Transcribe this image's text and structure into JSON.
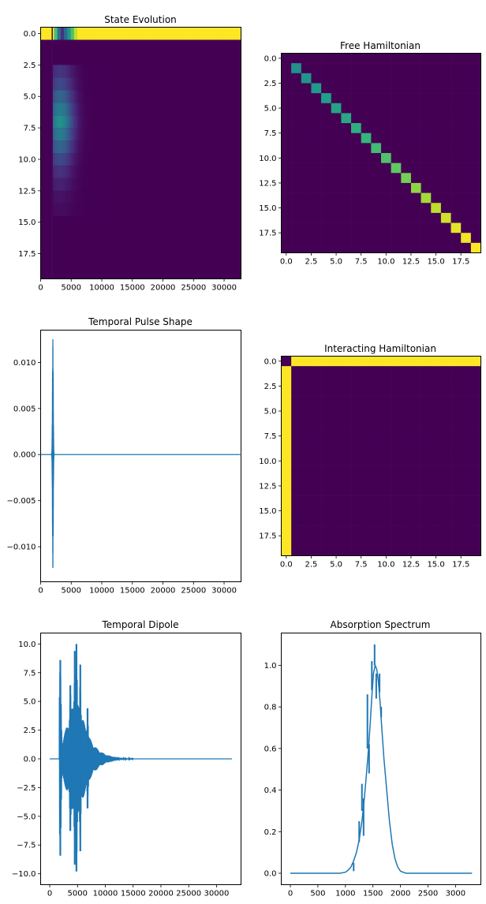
{
  "chart_data": [
    {
      "id": "state_evolution",
      "type": "heatmap",
      "title": "State Evolution",
      "colormap": "viridis",
      "xlim": [
        0,
        32768
      ],
      "ylim": [
        19.5,
        -0.5
      ],
      "x_ticks": [
        0,
        5000,
        10000,
        15000,
        20000,
        25000,
        30000
      ],
      "x_tick_labels": [
        "0",
        "5000",
        "10000",
        "15000",
        "20000",
        "25000",
        "30000"
      ],
      "y_ticks": [
        0,
        2.5,
        5,
        7.5,
        10,
        12.5,
        15,
        17.5
      ],
      "y_tick_labels": [
        "0.0",
        "2.5",
        "5.0",
        "7.5",
        "10.0",
        "12.5",
        "15.0",
        "17.5"
      ],
      "row0_population": {
        "full_before_x": 1800,
        "dip_start_x": 2000,
        "recovered_x": 6000,
        "min_value": 0.1
      },
      "excited_rows": [
        {
          "row": 3,
          "peak": 0.15
        },
        {
          "row": 4,
          "peak": 0.22
        },
        {
          "row": 5,
          "peak": 0.32
        },
        {
          "row": 6,
          "peak": 0.42
        },
        {
          "row": 7,
          "peak": 0.5
        },
        {
          "row": 8,
          "peak": 0.42
        },
        {
          "row": 9,
          "peak": 0.32
        },
        {
          "row": 10,
          "peak": 0.22
        },
        {
          "row": 11,
          "peak": 0.14
        },
        {
          "row": 12,
          "peak": 0.09
        },
        {
          "row": 13,
          "peak": 0.05
        },
        {
          "row": 14,
          "peak": 0.03
        }
      ],
      "excited_window_x": [
        2000,
        12000
      ]
    },
    {
      "id": "free_hamiltonian",
      "type": "heatmap",
      "title": "Free Hamiltonian",
      "colormap": "viridis",
      "size": 20,
      "diagonal_values": [
        0,
        0.5,
        0.52,
        0.54,
        0.56,
        0.58,
        0.6,
        0.63,
        0.66,
        0.69,
        0.72,
        0.75,
        0.79,
        0.83,
        0.86,
        0.9,
        0.93,
        0.96,
        0.98,
        1.0
      ],
      "x_ticks": [
        0,
        2.5,
        5,
        7.5,
        10,
        12.5,
        15,
        17.5
      ],
      "x_tick_labels": [
        "0.0",
        "2.5",
        "5.0",
        "7.5",
        "10.0",
        "12.5",
        "15.0",
        "17.5"
      ],
      "y_ticks": [
        0,
        2.5,
        5,
        7.5,
        10,
        12.5,
        15,
        17.5
      ],
      "y_tick_labels": [
        "0.0",
        "2.5",
        "5.0",
        "7.5",
        "10.0",
        "12.5",
        "15.0",
        "17.5"
      ]
    },
    {
      "id": "temporal_pulse_shape",
      "type": "line",
      "title": "Temporal Pulse Shape",
      "color": "#1f77b4",
      "xlim": [
        0,
        32768
      ],
      "ylim": [
        -0.0138,
        0.0135
      ],
      "pulse_center_x": 2000,
      "pulse_peak": 0.0125,
      "pulse_width_x": 90,
      "x_end": 32768,
      "x_ticks": [
        0,
        5000,
        10000,
        15000,
        20000,
        25000,
        30000
      ],
      "x_tick_labels": [
        "0",
        "5000",
        "10000",
        "15000",
        "20000",
        "25000",
        "30000"
      ],
      "y_ticks": [
        0.01,
        0.005,
        0,
        -0.005,
        -0.01
      ],
      "y_tick_labels": [
        "0.010",
        "0.005",
        "0.000",
        "−0.005",
        "−0.010"
      ]
    },
    {
      "id": "interacting_hamiltonian",
      "type": "heatmap",
      "title": "Interacting Hamiltonian",
      "colormap": "viridis",
      "size": 20,
      "nonzero": "first row and first column except element [0,0]",
      "x_ticks": [
        0,
        2.5,
        5,
        7.5,
        10,
        12.5,
        15,
        17.5
      ],
      "x_tick_labels": [
        "0.0",
        "2.5",
        "5.0",
        "7.5",
        "10.0",
        "12.5",
        "15.0",
        "17.5"
      ],
      "y_ticks": [
        0,
        2.5,
        5,
        7.5,
        10,
        12.5,
        15,
        17.5
      ],
      "y_tick_labels": [
        "0.0",
        "2.5",
        "5.0",
        "7.5",
        "10.0",
        "12.5",
        "15.0",
        "17.5"
      ]
    },
    {
      "id": "temporal_dipole",
      "type": "line",
      "title": "Temporal Dipole",
      "color": "#1f77b4",
      "xlim": [
        -1638,
        34406
      ],
      "ylim": [
        -10.95,
        10.95
      ],
      "x_start": 0,
      "x_end": 32768,
      "signal_start_x": 1700,
      "spikes": [
        {
          "x": 1900,
          "amp": 8.6
        },
        {
          "x": 3700,
          "amp": 6.4
        },
        {
          "x": 4500,
          "amp": 9.4
        },
        {
          "x": 4800,
          "amp": 10.0
        },
        {
          "x": 5500,
          "amp": 8.2
        },
        {
          "x": 6800,
          "amp": 4.4
        }
      ],
      "x_ticks": [
        0,
        5000,
        10000,
        15000,
        20000,
        25000,
        30000
      ],
      "x_tick_labels": [
        "0",
        "5000",
        "10000",
        "15000",
        "20000",
        "25000",
        "30000"
      ],
      "y_ticks": [
        10,
        7.5,
        5,
        2.5,
        0,
        -2.5,
        -5,
        -7.5,
        -10
      ],
      "y_tick_labels": [
        "10.0",
        "7.5",
        "5.0",
        "2.5",
        "0.0",
        "−2.5",
        "−5.0",
        "−7.5",
        "−10.0"
      ]
    },
    {
      "id": "absorption_spectrum",
      "type": "line",
      "title": "Absorption Spectrum",
      "color": "#1f77b4",
      "xlim": [
        -165,
        3460
      ],
      "ylim": [
        -0.055,
        1.155
      ],
      "x": [
        0,
        900,
        1000,
        1050,
        1100,
        1150,
        1200,
        1250,
        1300,
        1340,
        1380,
        1420,
        1450,
        1480,
        1510,
        1540,
        1570,
        1600,
        1630,
        1660,
        1700,
        1750,
        1800,
        1850,
        1900,
        1950,
        2000,
        2100,
        3300
      ],
      "y": [
        0,
        0,
        0.005,
        0.015,
        0.03,
        0.06,
        0.1,
        0.16,
        0.25,
        0.35,
        0.47,
        0.6,
        0.72,
        0.85,
        0.96,
        1.0,
        0.98,
        0.92,
        0.82,
        0.7,
        0.55,
        0.4,
        0.25,
        0.14,
        0.07,
        0.03,
        0.01,
        0,
        0
      ],
      "spikes": [
        {
          "x": 1150,
          "y": 0.05,
          "dy": -0.04
        },
        {
          "x": 1250,
          "y": 0.15,
          "dy": 0.1
        },
        {
          "x": 1300,
          "y": 0.3,
          "dy": 0.13
        },
        {
          "x": 1330,
          "y": 0.36,
          "dy": -0.18
        },
        {
          "x": 1400,
          "y": 0.6,
          "dy": 0.26
        },
        {
          "x": 1430,
          "y": 0.62,
          "dy": -0.14
        },
        {
          "x": 1480,
          "y": 0.88,
          "dy": 0.14
        },
        {
          "x": 1530,
          "y": 1.0,
          "dy": 0.1
        },
        {
          "x": 1560,
          "y": 0.96,
          "dy": -0.12
        },
        {
          "x": 1620,
          "y": 0.87,
          "dy": 0.09
        },
        {
          "x": 1650,
          "y": 0.8,
          "dy": -0.05
        }
      ],
      "x_ticks": [
        0,
        500,
        1000,
        1500,
        2000,
        2500,
        3000
      ],
      "x_tick_labels": [
        "0",
        "500",
        "1000",
        "1500",
        "2000",
        "2500",
        "3000"
      ],
      "y_ticks": [
        0,
        0.2,
        0.4,
        0.6,
        0.8,
        1.0
      ],
      "y_tick_labels": [
        "0.0",
        "0.2",
        "0.4",
        "0.6",
        "0.8",
        "1.0"
      ]
    }
  ]
}
